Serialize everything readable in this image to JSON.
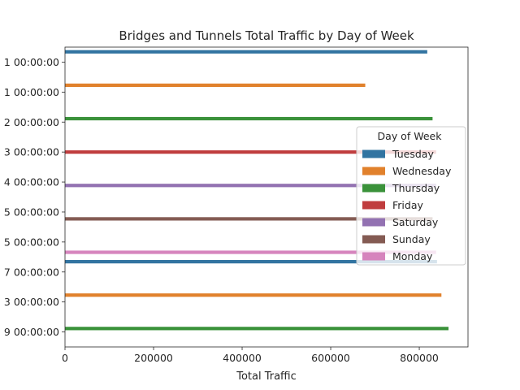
{
  "chart_data": {
    "type": "bar",
    "orientation": "horizontal",
    "title": "Bridges and Tunnels Total Traffic by Day of Week",
    "xlabel": "Total Traffic",
    "ylabel": "",
    "xlim": [
      0,
      910000
    ],
    "xticks": [
      0,
      200000,
      400000,
      600000,
      800000
    ],
    "xtick_labels": [
      "0",
      "200000",
      "400000",
      "600000",
      "800000"
    ],
    "categories": [
      "1 00:00:00",
      "1 00:00:00",
      "2 00:00:00",
      "3 00:00:00",
      "4 00:00:00",
      "5 00:00:00",
      "5 00:00:00",
      "7 00:00:00",
      "3 00:00:00",
      "9 00:00:00"
    ],
    "series": [
      {
        "name": "Tuesday",
        "color": "#3274a1",
        "points": [
          {
            "category_index": 0,
            "value": 818000
          },
          {
            "category_index": 7,
            "value": 840000
          }
        ]
      },
      {
        "name": "Wednesday",
        "color": "#e1812c",
        "points": [
          {
            "category_index": 1,
            "value": 678000
          },
          {
            "category_index": 8,
            "value": 850000
          }
        ]
      },
      {
        "name": "Thursday",
        "color": "#3a923a",
        "points": [
          {
            "category_index": 2,
            "value": 830000
          },
          {
            "category_index": 9,
            "value": 866000
          }
        ]
      },
      {
        "name": "Friday",
        "color": "#c03d3e",
        "points": [
          {
            "category_index": 3,
            "value": 838000
          }
        ]
      },
      {
        "name": "Saturday",
        "color": "#9372b2",
        "points": [
          {
            "category_index": 4,
            "value": 838000
          }
        ]
      },
      {
        "name": "Sunday",
        "color": "#845b53",
        "points": [
          {
            "category_index": 5,
            "value": 830000
          }
        ]
      },
      {
        "name": "Monday",
        "color": "#d684bd",
        "points": [
          {
            "category_index": 6,
            "value": 838000
          }
        ]
      }
    ],
    "legend": {
      "title": "Day of Week",
      "position": "right"
    },
    "grid": false
  }
}
